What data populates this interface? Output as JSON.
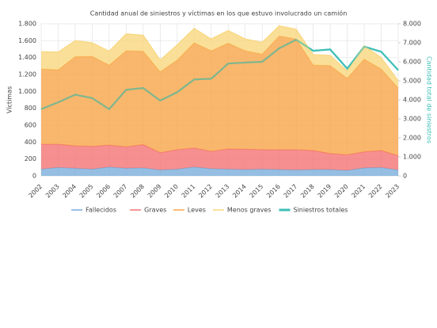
{
  "chart_data": {
    "type": "stacked_area",
    "title": "Cantidad anual de siniestros y víctimas en los que estuvo involucrado un camión",
    "ylabel": "Víctimas",
    "y2label": "Cantidad total de siniestros",
    "categories": [
      "2002",
      "2003",
      "2004",
      "2005",
      "2006",
      "2007",
      "2008",
      "2009",
      "2010",
      "2011",
      "2012",
      "2013",
      "2014",
      "2015",
      "2016",
      "2017",
      "2018",
      "2019",
      "2020",
      "2021",
      "2022",
      "2023"
    ],
    "series": [
      {
        "name": "Fallecidos",
        "color": "#7aaedb",
        "values": [
          80,
          100,
          90,
          80,
          105,
          90,
          95,
          70,
          80,
          105,
          85,
          80,
          75,
          80,
          75,
          70,
          75,
          75,
          65,
          95,
          100,
          70
        ]
      },
      {
        "name": "Graves",
        "color": "#f47474",
        "values": [
          295,
          275,
          265,
          270,
          260,
          255,
          275,
          205,
          230,
          225,
          205,
          240,
          240,
          230,
          235,
          240,
          225,
          190,
          185,
          190,
          200,
          170
        ]
      },
      {
        "name": "Leves",
        "color": "#f7a548",
        "values": [
          890,
          880,
          1055,
          1065,
          945,
          1135,
          1105,
          955,
          1060,
          1245,
          1190,
          1250,
          1165,
          1130,
          1345,
          1310,
          1010,
          1040,
          905,
          1095,
          965,
          800
        ]
      },
      {
        "name": "Menos graves",
        "color": "#f9d77e",
        "values": [
          205,
          210,
          190,
          160,
          165,
          200,
          190,
          140,
          180,
          170,
          140,
          150,
          140,
          140,
          120,
          115,
          125,
          120,
          85,
          160,
          135,
          85
        ]
      },
      {
        "name": "Siniestros totales",
        "color": "#3dbfb6",
        "axis": "y2",
        "type": "line",
        "values": [
          3510,
          3870,
          4270,
          4090,
          3510,
          4530,
          4620,
          3960,
          4400,
          5070,
          5110,
          5910,
          5960,
          6000,
          6710,
          7160,
          6580,
          6650,
          5640,
          6800,
          6530,
          5560
        ]
      }
    ],
    "ylim": [
      0,
      1800
    ],
    "yticks": [
      0,
      200,
      400,
      600,
      800,
      {
        "value": 1000,
        "label": "1.000"
      },
      {
        "value": 1200,
        "label": "1.200"
      },
      {
        "value": 1400,
        "label": "1.400"
      },
      {
        "value": 1600,
        "label": "1.600"
      },
      {
        "value": 1800,
        "label": "1.800"
      }
    ],
    "y2lim": [
      0,
      8000
    ],
    "y2ticks": [
      0,
      {
        "value": 1000,
        "label": "1.000"
      },
      {
        "value": 2000,
        "label": "2.000"
      },
      {
        "value": 3000,
        "label": "3.000"
      },
      {
        "value": 4000,
        "label": "4.000"
      },
      {
        "value": 5000,
        "label": "5.000"
      },
      {
        "value": 6000,
        "label": "6.000"
      },
      {
        "value": 7000,
        "label": "7.000"
      },
      {
        "value": 8000,
        "label": "8.000"
      }
    ],
    "grid": true,
    "legend": "bottom"
  }
}
